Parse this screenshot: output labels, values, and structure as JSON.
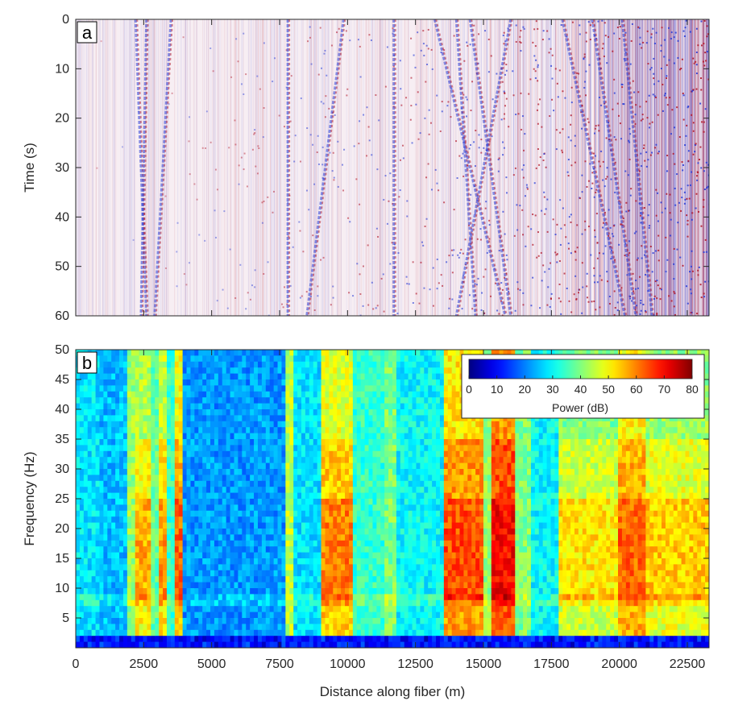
{
  "chart_data": [
    {
      "type": "heatmap",
      "panel_label": "a",
      "title": "",
      "xlabel": "",
      "ylabel": "Time (s)",
      "xlim": [
        0,
        23300
      ],
      "ylim": [
        0,
        60
      ],
      "y_reversed": true,
      "x_ticks": [
        0,
        2500,
        5000,
        7500,
        10000,
        12500,
        15000,
        17500,
        20000,
        22500
      ],
      "y_ticks": [
        0,
        10,
        20,
        30,
        40,
        50,
        60
      ],
      "colormap": "red-white-blue (diverging)",
      "colors": {
        "positive": "#b2182b",
        "negative": "#2a3dd6",
        "zero": "#ffffff"
      },
      "moveout_tracks": [
        {
          "x_at_t0": 2200,
          "x_at_t60": 2600
        },
        {
          "x_at_t0": 2600,
          "x_at_t60": 2400
        },
        {
          "x_at_t0": 3500,
          "x_at_t60": 2900
        },
        {
          "x_at_t0": 9850,
          "x_at_t60": 8500
        },
        {
          "x_at_t0": 14000,
          "x_at_t60": 14700
        },
        {
          "x_at_t0": 14500,
          "x_at_t60": 16000
        },
        {
          "x_at_t0": 16000,
          "x_at_t60": 14000
        },
        {
          "x_at_t0": 13200,
          "x_at_t60": 15800
        },
        {
          "x_at_t0": 20100,
          "x_at_t60": 21200
        },
        {
          "x_at_t0": 19000,
          "x_at_t60": 20600
        },
        {
          "x_at_t0": 17900,
          "x_at_t60": 20200
        },
        {
          "x_at_t0": 11700,
          "x_at_t60": 11700
        },
        {
          "x_at_t0": 7800,
          "x_at_t60": 7800
        }
      ]
    },
    {
      "type": "heatmap",
      "panel_label": "b",
      "title": "",
      "xlabel": "Distance along fiber (m)",
      "ylabel": "Frequency (Hz)",
      "xlim": [
        0,
        23300
      ],
      "ylim": [
        0,
        50
      ],
      "x_ticks": [
        0,
        2500,
        5000,
        7500,
        10000,
        12500,
        15000,
        17500,
        20000,
        22500
      ],
      "x_tick_labels": [
        "0",
        "2500",
        "5000",
        "7500",
        "10000",
        "12500",
        "15000",
        "17500",
        "20000",
        "22500"
      ],
      "y_ticks": [
        5,
        10,
        15,
        20,
        25,
        30,
        35,
        40,
        45,
        50
      ],
      "colormap": "jet",
      "colorbar": {
        "label": "Power (dB)",
        "range": [
          0,
          80
        ],
        "ticks": [
          0,
          10,
          20,
          30,
          40,
          50,
          60,
          70,
          80
        ],
        "orientation": "horizontal",
        "placement": "top-right"
      },
      "distance_bands_dB": [
        {
          "x": [
            0,
            900
          ],
          "dB": 28
        },
        {
          "x": [
            900,
            1900
          ],
          "dB": 25
        },
        {
          "x": [
            1900,
            2200
          ],
          "dB": 42
        },
        {
          "x": [
            2200,
            2700
          ],
          "dB": 50
        },
        {
          "x": [
            2700,
            3000
          ],
          "dB": 38
        },
        {
          "x": [
            3000,
            3300
          ],
          "dB": 52
        },
        {
          "x": [
            3300,
            3600
          ],
          "dB": 34
        },
        {
          "x": [
            3600,
            3950
          ],
          "dB": 56
        },
        {
          "x": [
            3950,
            7700
          ],
          "dB": 22
        },
        {
          "x": [
            7700,
            8050
          ],
          "dB": 45
        },
        {
          "x": [
            8050,
            9000
          ],
          "dB": 28
        },
        {
          "x": [
            9000,
            10200
          ],
          "dB": 54
        },
        {
          "x": [
            10200,
            11300
          ],
          "dB": 34
        },
        {
          "x": [
            11300,
            11800
          ],
          "dB": 40
        },
        {
          "x": [
            11800,
            13600
          ],
          "dB": 30
        },
        {
          "x": [
            13600,
            15000
          ],
          "dB": 58
        },
        {
          "x": [
            15000,
            15350
          ],
          "dB": 42
        },
        {
          "x": [
            15350,
            16100
          ],
          "dB": 64
        },
        {
          "x": [
            16100,
            16800
          ],
          "dB": 40
        },
        {
          "x": [
            16800,
            17800
          ],
          "dB": 30
        },
        {
          "x": [
            17800,
            20000
          ],
          "dB": 46
        },
        {
          "x": [
            20000,
            21000
          ],
          "dB": 56
        },
        {
          "x": [
            21000,
            23300
          ],
          "dB": 48
        }
      ]
    }
  ]
}
